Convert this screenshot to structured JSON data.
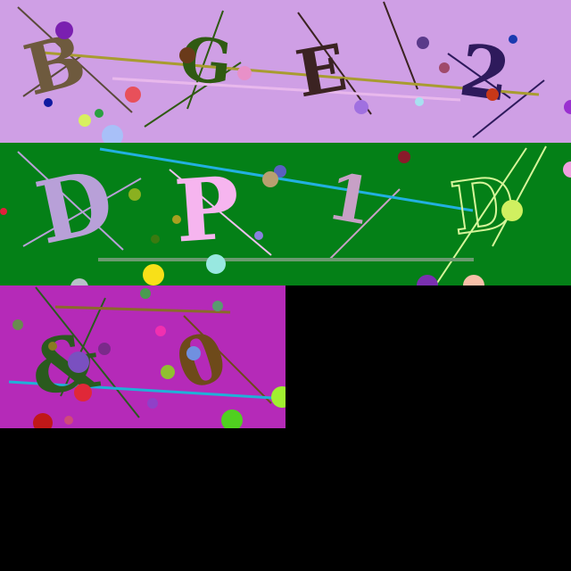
{
  "background": "#000000",
  "panels": [
    {
      "id": "p1",
      "background": "#cf9fe5",
      "chars": [
        {
          "text": "B",
          "color": "#6e5a3e"
        },
        {
          "text": "G",
          "color": "#2f5a12"
        },
        {
          "text": "E",
          "color": "#3b2322"
        },
        {
          "text": "2",
          "color": "#2e1a5c"
        }
      ]
    },
    {
      "id": "p2",
      "background": "#048017",
      "chars": [
        {
          "text": "D",
          "color": "#b8a0d8"
        },
        {
          "text": "P",
          "color": "#f6b5ef"
        },
        {
          "text": "1",
          "color": "#c7a0c6"
        },
        {
          "text": "D",
          "color": "#d6f59a"
        }
      ]
    },
    {
      "id": "p3",
      "background": "#b52ab8",
      "chars": [
        {
          "text": "&",
          "color": "#2a5a1e"
        },
        {
          "text": "0",
          "color": "#6e4a1a"
        }
      ]
    }
  ]
}
